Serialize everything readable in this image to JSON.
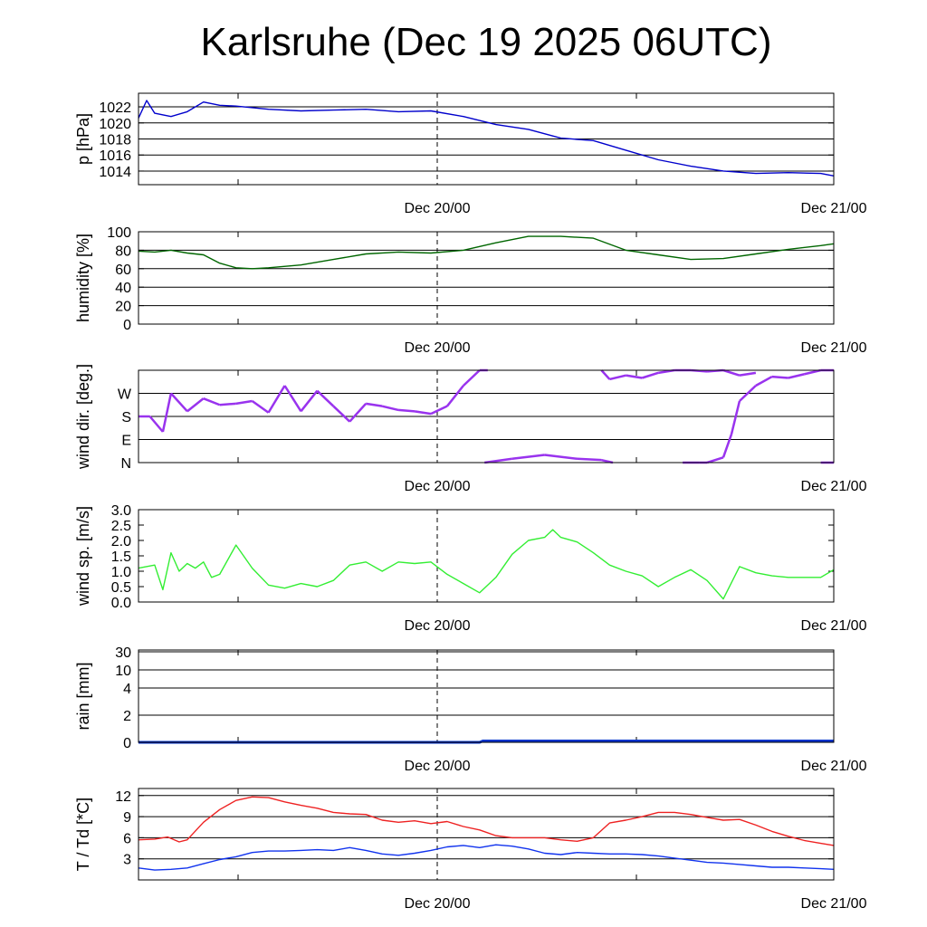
{
  "title": "Karlsruhe (Dec 19 2025 06UTC)",
  "x_tick_labels": [
    "Dec 20/00",
    "Dec 21/00"
  ],
  "chart_data": [
    {
      "type": "line",
      "ylabel": "p [hPa]",
      "ylim": [
        1012.3,
        1023.7
      ],
      "yticks": [
        1014,
        1016,
        1018,
        1020,
        1022
      ],
      "ytick_labels": [
        "1014",
        "1016",
        "1018",
        "1020",
        "1022"
      ],
      "grid": true,
      "series": [
        {
          "color": "#0000cc",
          "x": [
            0,
            0.5,
            1,
            2,
            3,
            4,
            5,
            6,
            8,
            10,
            12,
            14,
            16,
            18,
            20,
            22,
            24,
            26,
            28,
            30,
            32,
            34,
            36,
            38,
            40,
            42,
            42.8
          ],
          "values": [
            1020.6,
            1022.8,
            1021.2,
            1020.8,
            1021.4,
            1022.6,
            1022.2,
            1022.1,
            1021.7,
            1021.5,
            1021.6,
            1021.7,
            1021.4,
            1021.5,
            1020.8,
            1019.8,
            1019.2,
            1018.1,
            1017.8,
            1016.6,
            1015.4,
            1014.6,
            1014.0,
            1013.7,
            1013.8,
            1013.7,
            1013.4
          ]
        }
      ]
    },
    {
      "type": "line",
      "ylabel": "humidity [%]",
      "ylim": [
        0,
        100
      ],
      "yticks": [
        0,
        20,
        40,
        60,
        80,
        100
      ],
      "ytick_labels": [
        "0",
        "20",
        "40",
        "60",
        "80",
        "100"
      ],
      "grid": true,
      "series": [
        {
          "color": "#006600",
          "x": [
            0,
            1,
            2,
            3,
            4,
            5,
            6,
            7,
            8,
            10,
            12,
            14,
            16,
            18,
            20,
            22,
            24,
            26,
            28,
            30,
            32,
            34,
            36,
            38,
            40,
            42,
            42.8
          ],
          "values": [
            79,
            78,
            80,
            77,
            75,
            66,
            61,
            60,
            61,
            64,
            70,
            76,
            78,
            77,
            80,
            88,
            95,
            95,
            93,
            80,
            75,
            70,
            71,
            76,
            81,
            85,
            87
          ]
        }
      ]
    },
    {
      "type": "scatter",
      "ylabel": "wind dir. [deg.]",
      "ylim": [
        0,
        360
      ],
      "yticks": [
        0,
        90,
        180,
        270
      ],
      "ytick_labels": [
        "N",
        "E",
        "S",
        "W"
      ],
      "grid": true,
      "series": [
        {
          "color": "#9933ee",
          "x": [
            0,
            0.7,
            1.5,
            2,
            3,
            4,
            5,
            6,
            7,
            8,
            9,
            10,
            11,
            12,
            13,
            14,
            15,
            16,
            17,
            18,
            19,
            20,
            21,
            21.5
          ],
          "values": [
            180,
            180,
            120,
            270,
            200,
            250,
            225,
            230,
            240,
            195,
            300,
            200,
            280,
            220,
            160,
            230,
            220,
            205,
            200,
            190,
            220,
            300,
            360,
            360
          ]
        },
        {
          "color": "#9933ee",
          "x": [
            21.3,
            23,
            25,
            27,
            28.5,
            29.2
          ],
          "values": [
            0,
            15,
            30,
            15,
            10,
            0
          ]
        },
        {
          "color": "#9933ee",
          "x": [
            28.5,
            29,
            30,
            31,
            32,
            33,
            34,
            35,
            36,
            37,
            38
          ],
          "values": [
            360,
            325,
            340,
            330,
            350,
            360,
            360,
            355,
            360,
            340,
            350
          ]
        },
        {
          "color": "#9933ee",
          "x": [
            33.5,
            34.5,
            35,
            36,
            36.5,
            37,
            38,
            39,
            40,
            41,
            42,
            42.8
          ],
          "values": [
            0,
            0,
            0,
            20,
            110,
            240,
            300,
            335,
            330,
            345,
            360,
            360
          ]
        },
        {
          "color": "#9933ee",
          "x": [
            42,
            42.8
          ],
          "values": [
            0,
            0
          ]
        }
      ]
    },
    {
      "type": "line",
      "ylabel": "wind sp. [m/s]",
      "ylim": [
        0,
        3
      ],
      "yticks": [
        0,
        0.5,
        1,
        1.5,
        2,
        2.5,
        3
      ],
      "ytick_labels": [
        "0.0",
        "0.5",
        "1.0",
        "1.5",
        "2.0",
        "2.5",
        "3.0"
      ],
      "grid": false,
      "series": [
        {
          "color": "#33ee33",
          "x": [
            0,
            1,
            1.5,
            2,
            2.5,
            3,
            3.5,
            4,
            4.5,
            5,
            6,
            7,
            8,
            9,
            10,
            11,
            12,
            13,
            14,
            15,
            16,
            17,
            18,
            19,
            20,
            21,
            22,
            23,
            24,
            25,
            25.5,
            26,
            27,
            28,
            29,
            30,
            31,
            32,
            33,
            34,
            35,
            36,
            37,
            38,
            39,
            40,
            41,
            42,
            42.8
          ],
          "values": [
            1.1,
            1.2,
            0.4,
            1.6,
            1.0,
            1.25,
            1.1,
            1.3,
            0.8,
            0.9,
            1.85,
            1.1,
            0.55,
            0.45,
            0.6,
            0.5,
            0.7,
            1.2,
            1.3,
            1.0,
            1.3,
            1.25,
            1.3,
            0.9,
            0.6,
            0.3,
            0.8,
            1.55,
            2.0,
            2.1,
            2.35,
            2.1,
            1.95,
            1.6,
            1.2,
            1.0,
            0.85,
            0.5,
            0.8,
            1.05,
            0.7,
            0.1,
            1.15,
            0.95,
            0.85,
            0.8,
            0.8,
            0.8,
            1.05
          ]
        }
      ]
    },
    {
      "type": "bar",
      "ylabel": "rain [mm]",
      "ylim": [
        0,
        30
      ],
      "yticks": [
        0,
        2,
        4,
        10,
        30
      ],
      "ytick_labels": [
        "0",
        "2",
        "4",
        "10",
        "30"
      ],
      "grid": true,
      "series": [
        {
          "color": "#0033cc",
          "x": [
            0,
            21,
            21.2,
            42.8
          ],
          "values": [
            0,
            0,
            0.1,
            0.1
          ]
        }
      ]
    },
    {
      "type": "line",
      "ylabel": "T / Td [*C]",
      "ylim": [
        0,
        13
      ],
      "yticks": [
        3,
        6,
        9,
        12
      ],
      "ytick_labels": [
        "3",
        "6",
        "9",
        "12"
      ],
      "grid": true,
      "series": [
        {
          "name": "T",
          "color": "#ee2222",
          "x": [
            0,
            1,
            1.8,
            2.5,
            3,
            4,
            5,
            6,
            7,
            8,
            9,
            10,
            11,
            12,
            13,
            14,
            15,
            16,
            17,
            18,
            19,
            20,
            21,
            22,
            23,
            24,
            25,
            26,
            27,
            28,
            29,
            30,
            31,
            32,
            33,
            34,
            35,
            36,
            37,
            38,
            39,
            40,
            41,
            42,
            42.8
          ],
          "values": [
            5.7,
            5.8,
            6.1,
            5.4,
            5.7,
            8.2,
            10.0,
            11.3,
            11.8,
            11.7,
            11.1,
            10.6,
            10.2,
            9.6,
            9.4,
            9.3,
            8.5,
            8.2,
            8.4,
            8.0,
            8.3,
            7.6,
            7.1,
            6.3,
            6.0,
            6.0,
            6.0,
            5.7,
            5.5,
            6.0,
            8.1,
            8.5,
            9.0,
            9.6,
            9.6,
            9.3,
            8.9,
            8.5,
            8.6,
            7.8,
            6.9,
            6.2,
            5.6,
            5.2,
            4.9
          ]
        },
        {
          "name": "Td",
          "color": "#1133ee",
          "x": [
            0,
            1,
            2,
            3,
            4,
            5,
            6,
            7,
            8,
            9,
            10,
            11,
            12,
            13,
            14,
            15,
            16,
            17,
            18,
            19,
            20,
            21,
            22,
            23,
            24,
            25,
            26,
            27,
            28,
            29,
            30,
            31,
            32,
            33,
            34,
            35,
            36,
            37,
            38,
            39,
            40,
            41,
            42,
            42.8
          ],
          "values": [
            1.7,
            1.4,
            1.5,
            1.7,
            2.3,
            2.9,
            3.3,
            3.9,
            4.1,
            4.1,
            4.2,
            4.3,
            4.2,
            4.6,
            4.2,
            3.7,
            3.5,
            3.8,
            4.2,
            4.7,
            4.9,
            4.6,
            5.0,
            4.8,
            4.4,
            3.8,
            3.6,
            3.9,
            3.8,
            3.7,
            3.7,
            3.6,
            3.4,
            3.1,
            2.8,
            2.5,
            2.4,
            2.2,
            2.0,
            1.8,
            1.8,
            1.7,
            1.6,
            1.5
          ]
        }
      ]
    }
  ]
}
